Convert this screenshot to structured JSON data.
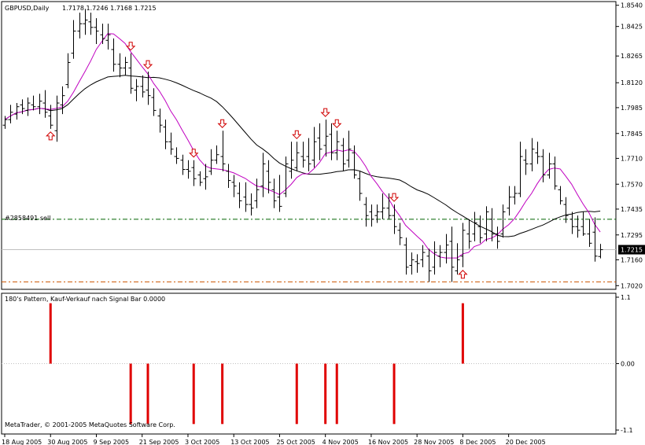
{
  "symbol": "GBPUSD,Daily",
  "ohlc_text": "1.7178 1.7246 1.7168 1.7215",
  "price_label": "1.7215",
  "order_label": "#2858491 sell",
  "indicator_title": "180's Pattern, Kauf-Verkauf nach Signal Bar 0.0000",
  "copyright": "MetaTrader, © 2001-2005 MetaQuotes Software Corp.",
  "colors": {
    "background": "#ffffff",
    "bars": "#000000",
    "fast_ma": "#c000c0",
    "slow_ma": "#000000",
    "arrows": "#d00000",
    "histogram": "#e00000",
    "order_line": "#006400",
    "stop_line": "#cc5500",
    "price_line": "#c0c0c0"
  },
  "chart_data": [
    {
      "type": "ohlc",
      "yticks": [
        "1.8540",
        "1.8425",
        "1.8265",
        "1.8120",
        "1.7985",
        "1.7845",
        "1.7710",
        "1.7570",
        "1.7435",
        "1.7295",
        "1.7160",
        "1.7020"
      ],
      "xticks": [
        "18 Aug 2005",
        "30 Aug 2005",
        "9 Sep 2005",
        "21 Sep 2005",
        "3 Oct 2005",
        "13 Oct 2005",
        "25 Oct 2005",
        "4 Nov 2005",
        "16 Nov 2005",
        "28 Nov 2005",
        "8 Dec 2005",
        "20 Dec 2005"
      ],
      "ylim": [
        1.7,
        1.856
      ],
      "current_price": 1.7215,
      "order_price": 1.738,
      "stop_price": 1.704,
      "bars": [
        [
          1.789,
          1.794,
          1.787,
          1.792
        ],
        [
          1.792,
          1.8,
          1.79,
          1.796
        ],
        [
          1.795,
          1.801,
          1.792,
          1.799
        ],
        [
          1.8,
          1.803,
          1.795,
          1.798
        ],
        [
          1.797,
          1.804,
          1.794,
          1.801
        ],
        [
          1.8,
          1.805,
          1.797,
          1.799
        ],
        [
          1.799,
          1.806,
          1.795,
          1.802
        ],
        [
          1.801,
          1.808,
          1.793,
          1.796
        ],
        [
          1.794,
          1.8,
          1.787,
          1.789
        ],
        [
          1.786,
          1.805,
          1.78,
          1.801
        ],
        [
          1.8,
          1.81,
          1.795,
          1.805
        ],
        [
          1.811,
          1.828,
          1.809,
          1.823
        ],
        [
          1.828,
          1.846,
          1.825,
          1.84
        ],
        [
          1.84,
          1.85,
          1.836,
          1.844
        ],
        [
          1.844,
          1.852,
          1.838,
          1.846
        ],
        [
          1.845,
          1.85,
          1.838,
          1.842
        ],
        [
          1.842,
          1.847,
          1.833,
          1.84
        ],
        [
          1.838,
          1.844,
          1.833,
          1.836
        ],
        [
          1.835,
          1.844,
          1.83,
          1.838
        ],
        [
          1.83,
          1.836,
          1.818,
          1.822
        ],
        [
          1.822,
          1.828,
          1.815,
          1.82
        ],
        [
          1.82,
          1.826,
          1.816,
          1.823
        ],
        [
          1.82,
          1.828,
          1.806,
          1.809
        ],
        [
          1.808,
          1.814,
          1.802,
          1.81
        ],
        [
          1.81,
          1.816,
          1.804,
          1.807
        ],
        [
          1.808,
          1.818,
          1.8,
          1.805
        ],
        [
          1.804,
          1.809,
          1.794,
          1.797
        ],
        [
          1.794,
          1.798,
          1.785,
          1.789
        ],
        [
          1.788,
          1.792,
          1.776,
          1.78
        ],
        [
          1.78,
          1.785,
          1.773,
          1.776
        ],
        [
          1.772,
          1.777,
          1.768,
          1.771
        ],
        [
          1.77,
          1.773,
          1.762,
          1.765
        ],
        [
          1.765,
          1.77,
          1.76,
          1.764
        ],
        [
          1.766,
          1.77,
          1.756,
          1.76
        ],
        [
          1.762,
          1.764,
          1.756,
          1.758
        ],
        [
          1.76,
          1.768,
          1.754,
          1.761
        ],
        [
          1.764,
          1.776,
          1.762,
          1.77
        ],
        [
          1.77,
          1.778,
          1.768,
          1.773
        ],
        [
          1.772,
          1.786,
          1.764,
          1.768
        ],
        [
          1.764,
          1.768,
          1.755,
          1.759
        ],
        [
          1.758,
          1.762,
          1.75,
          1.756
        ],
        [
          1.752,
          1.758,
          1.744,
          1.748
        ],
        [
          1.75,
          1.758,
          1.742,
          1.746
        ],
        [
          1.746,
          1.752,
          1.74,
          1.744
        ],
        [
          1.748,
          1.76,
          1.744,
          1.754
        ],
        [
          1.756,
          1.774,
          1.75,
          1.768
        ],
        [
          1.764,
          1.77,
          1.752,
          1.758
        ],
        [
          1.754,
          1.76,
          1.744,
          1.748
        ],
        [
          1.75,
          1.762,
          1.742,
          1.745
        ],
        [
          1.752,
          1.772,
          1.75,
          1.768
        ],
        [
          1.764,
          1.78,
          1.76,
          1.77
        ],
        [
          1.766,
          1.78,
          1.764,
          1.774
        ],
        [
          1.772,
          1.78,
          1.766,
          1.77
        ],
        [
          1.772,
          1.782,
          1.764,
          1.768
        ],
        [
          1.77,
          1.788,
          1.766,
          1.78
        ],
        [
          1.782,
          1.79,
          1.77,
          1.776
        ],
        [
          1.778,
          1.792,
          1.772,
          1.783
        ],
        [
          1.784,
          1.79,
          1.77,
          1.774
        ],
        [
          1.774,
          1.786,
          1.77,
          1.78
        ],
        [
          1.778,
          1.782,
          1.764,
          1.768
        ],
        [
          1.77,
          1.786,
          1.766,
          1.776
        ],
        [
          1.774,
          1.778,
          1.76,
          1.762
        ],
        [
          1.76,
          1.764,
          1.748,
          1.752
        ],
        [
          1.746,
          1.75,
          1.734,
          1.74
        ],
        [
          1.742,
          1.746,
          1.734,
          1.738
        ],
        [
          1.74,
          1.746,
          1.736,
          1.742
        ],
        [
          1.742,
          1.752,
          1.738,
          1.744
        ],
        [
          1.744,
          1.752,
          1.738,
          1.74
        ],
        [
          1.74,
          1.746,
          1.73,
          1.734
        ],
        [
          1.732,
          1.736,
          1.724,
          1.728
        ],
        [
          1.724,
          1.728,
          1.708,
          1.712
        ],
        [
          1.713,
          1.72,
          1.708,
          1.716
        ],
        [
          1.715,
          1.719,
          1.709,
          1.714
        ],
        [
          1.716,
          1.724,
          1.712,
          1.72
        ],
        [
          1.718,
          1.722,
          1.704,
          1.71
        ],
        [
          1.712,
          1.726,
          1.708,
          1.72
        ],
        [
          1.718,
          1.724,
          1.712,
          1.72
        ],
        [
          1.72,
          1.73,
          1.714,
          1.724
        ],
        [
          1.726,
          1.734,
          1.704,
          1.712
        ],
        [
          1.71,
          1.725,
          1.708,
          1.716
        ],
        [
          1.718,
          1.736,
          1.712,
          1.732
        ],
        [
          1.73,
          1.738,
          1.722,
          1.726
        ],
        [
          1.73,
          1.742,
          1.726,
          1.736
        ],
        [
          1.734,
          1.74,
          1.725,
          1.728
        ],
        [
          1.73,
          1.745,
          1.726,
          1.742
        ],
        [
          1.738,
          1.744,
          1.726,
          1.73
        ],
        [
          1.73,
          1.734,
          1.722,
          1.726
        ],
        [
          1.73,
          1.746,
          1.728,
          1.742
        ],
        [
          1.744,
          1.756,
          1.74,
          1.75
        ],
        [
          1.75,
          1.756,
          1.746,
          1.752
        ],
        [
          1.752,
          1.78,
          1.75,
          1.772
        ],
        [
          1.77,
          1.776,
          1.762,
          1.768
        ],
        [
          1.768,
          1.782,
          1.764,
          1.776
        ],
        [
          1.774,
          1.78,
          1.768,
          1.772
        ],
        [
          1.772,
          1.776,
          1.758,
          1.762
        ],
        [
          1.762,
          1.774,
          1.76,
          1.768
        ],
        [
          1.768,
          1.772,
          1.754,
          1.756
        ],
        [
          1.754,
          1.756,
          1.746,
          1.748
        ],
        [
          1.746,
          1.75,
          1.736,
          1.74
        ],
        [
          1.738,
          1.742,
          1.73,
          1.734
        ],
        [
          1.734,
          1.74,
          1.728,
          1.732
        ],
        [
          1.734,
          1.742,
          1.729,
          1.73
        ],
        [
          1.73,
          1.738,
          1.723,
          1.725
        ],
        [
          1.731,
          1.739,
          1.715,
          1.718
        ],
        [
          1.7178,
          1.7246,
          1.7168,
          1.7215
        ]
      ],
      "arrows": [
        {
          "bar": 8,
          "dir": "up"
        },
        {
          "bar": 22,
          "dir": "down"
        },
        {
          "bar": 25,
          "dir": "down"
        },
        {
          "bar": 33,
          "dir": "down"
        },
        {
          "bar": 38,
          "dir": "down"
        },
        {
          "bar": 51,
          "dir": "down"
        },
        {
          "bar": 56,
          "dir": "down"
        },
        {
          "bar": 58,
          "dir": "down"
        },
        {
          "bar": 68,
          "dir": "down"
        },
        {
          "bar": 80,
          "dir": "up"
        }
      ]
    },
    {
      "type": "histogram",
      "yticks": [
        "1.1",
        "0.00",
        "-1.1"
      ],
      "ylim": [
        -1.1,
        1.1
      ],
      "values": [
        {
          "bar": 8,
          "value": 1
        },
        {
          "bar": 22,
          "value": -1
        },
        {
          "bar": 25,
          "value": -1
        },
        {
          "bar": 33,
          "value": -1
        },
        {
          "bar": 38,
          "value": -1
        },
        {
          "bar": 51,
          "value": -1
        },
        {
          "bar": 56,
          "value": -1
        },
        {
          "bar": 58,
          "value": -1
        },
        {
          "bar": 68,
          "value": -1
        },
        {
          "bar": 80,
          "value": 1
        }
      ]
    }
  ]
}
